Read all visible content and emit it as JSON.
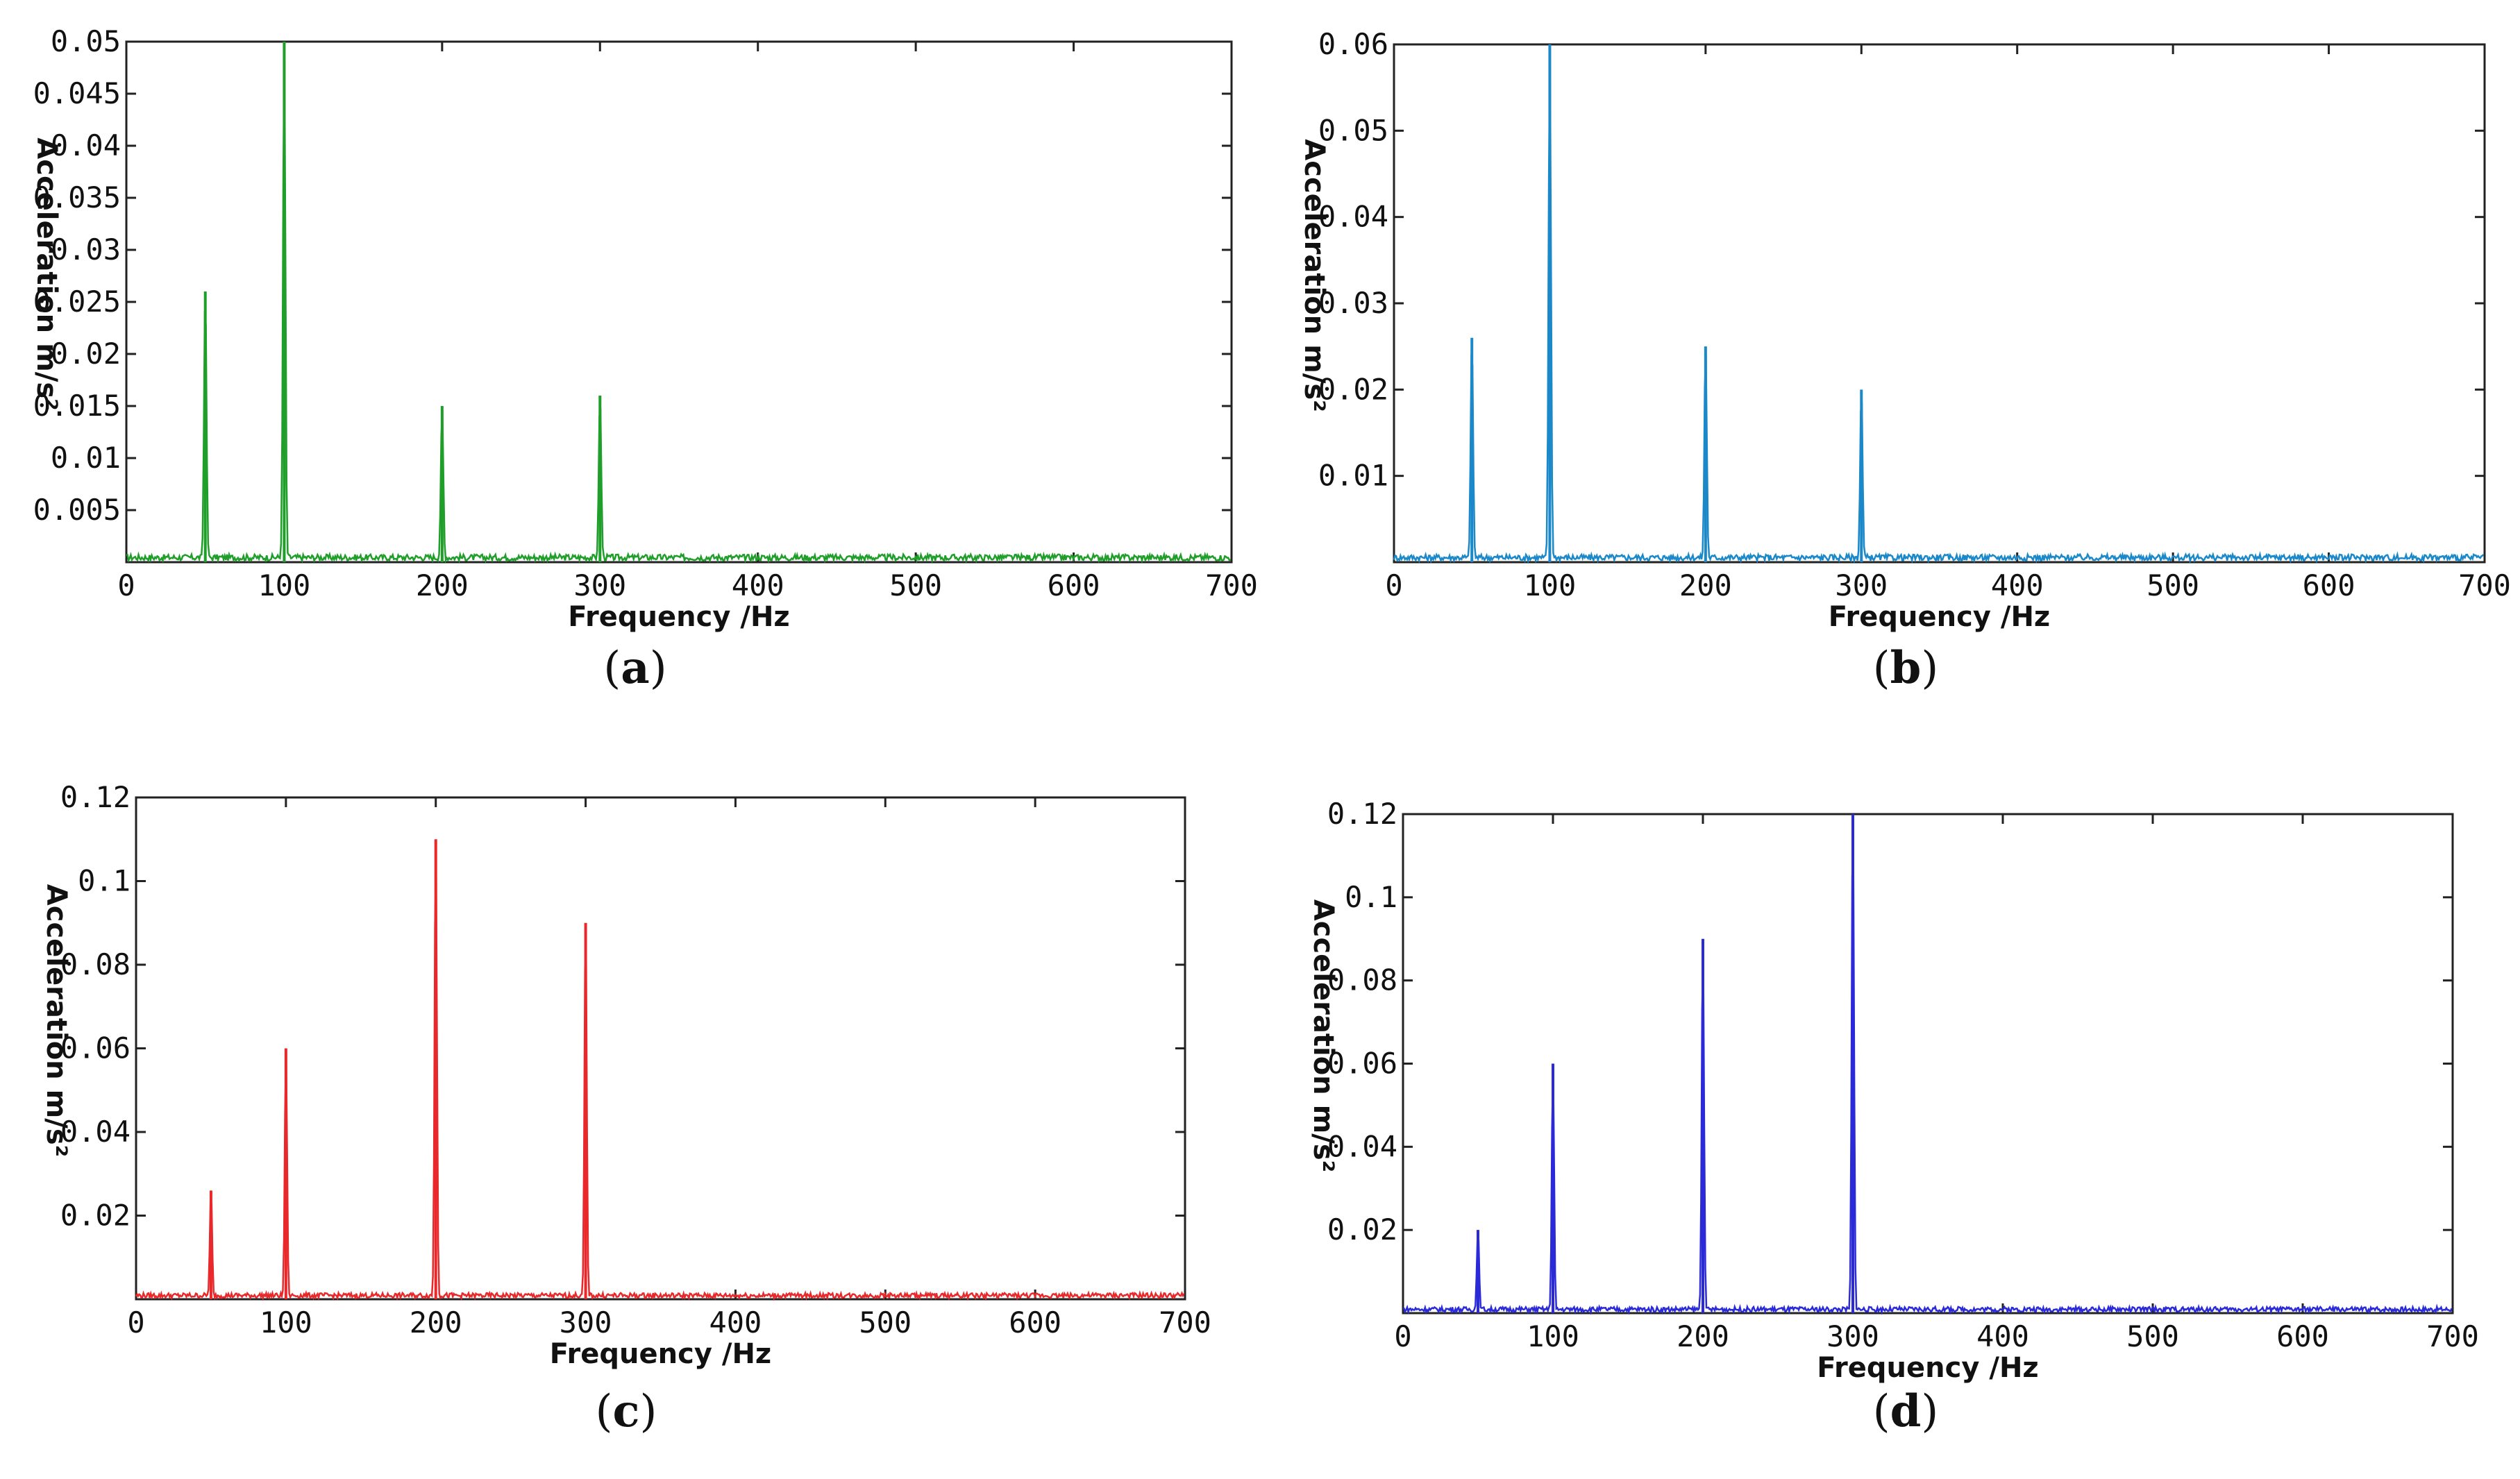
{
  "chart_data": [
    {
      "type": "line",
      "panel_label": "a",
      "xlabel": "Frequency /Hz",
      "ylabel": "Acceleration  m/s²",
      "xlim": [
        0,
        700
      ],
      "ylim": [
        0,
        0.05
      ],
      "xticks": [
        "0",
        "100",
        "200",
        "300",
        "400",
        "500",
        "600",
        "700"
      ],
      "yticks": [
        "0.005",
        "0.01",
        "0.015",
        "0.02",
        "0.025",
        "0.03",
        "0.035",
        "0.04",
        "0.045",
        "0.05"
      ],
      "grid": false,
      "color": "#1f9e2a",
      "noise_floor": 0.0005,
      "peaks": [
        {
          "x": 50,
          "y": 0.026
        },
        {
          "x": 100,
          "y": 0.05
        },
        {
          "x": 200,
          "y": 0.015
        },
        {
          "x": 300,
          "y": 0.016
        }
      ]
    },
    {
      "type": "line",
      "panel_label": "b",
      "xlabel": "Frequency /Hz",
      "ylabel": "Acceleration  m/s²",
      "xlim": [
        0,
        700
      ],
      "ylim": [
        0,
        0.06
      ],
      "xticks": [
        "0",
        "100",
        "200",
        "300",
        "400",
        "500",
        "600",
        "700"
      ],
      "yticks": [
        "0.01",
        "0.02",
        "0.03",
        "0.04",
        "0.05",
        "0.06"
      ],
      "grid": false,
      "color": "#1a88c9",
      "noise_floor": 0.0006,
      "peaks": [
        {
          "x": 50,
          "y": 0.026
        },
        {
          "x": 100,
          "y": 0.06
        },
        {
          "x": 200,
          "y": 0.025
        },
        {
          "x": 300,
          "y": 0.02
        }
      ]
    },
    {
      "type": "line",
      "panel_label": "c",
      "xlabel": "Frequency /Hz",
      "ylabel": "Acceleration  m/s²",
      "xlim": [
        0,
        700
      ],
      "ylim": [
        0,
        0.12
      ],
      "xticks": [
        "0",
        "100",
        "200",
        "300",
        "400",
        "500",
        "600",
        "700"
      ],
      "yticks": [
        "0.02",
        "0.04",
        "0.06",
        "0.08",
        "0.1",
        "0.12"
      ],
      "grid": false,
      "color": "#e8282a",
      "noise_floor": 0.001,
      "peaks": [
        {
          "x": 50,
          "y": 0.026
        },
        {
          "x": 100,
          "y": 0.06
        },
        {
          "x": 200,
          "y": 0.11
        },
        {
          "x": 300,
          "y": 0.09
        }
      ]
    },
    {
      "type": "line",
      "panel_label": "d",
      "xlabel": "Frequency /Hz",
      "ylabel": "Acceleration  m/s²",
      "xlim": [
        0,
        700
      ],
      "ylim": [
        0,
        0.12
      ],
      "xticks": [
        "0",
        "100",
        "200",
        "300",
        "400",
        "500",
        "600",
        "700"
      ],
      "yticks": [
        "0.02",
        "0.04",
        "0.06",
        "0.08",
        "0.1",
        "0.12"
      ],
      "grid": false,
      "color": "#2a2ad8",
      "noise_floor": 0.001,
      "peaks": [
        {
          "x": 50,
          "y": 0.02
        },
        {
          "x": 100,
          "y": 0.06
        },
        {
          "x": 200,
          "y": 0.09
        },
        {
          "x": 300,
          "y": 0.12
        }
      ]
    }
  ]
}
